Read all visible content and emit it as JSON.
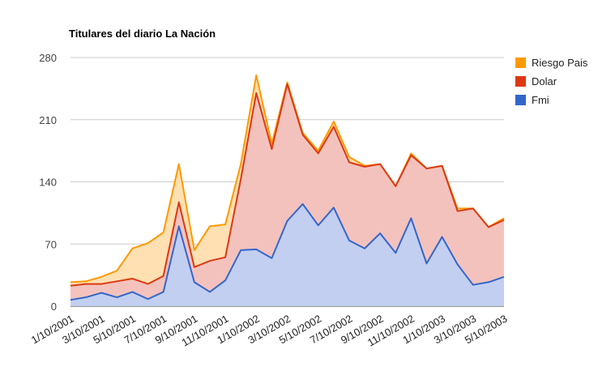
{
  "chart_data": {
    "type": "area",
    "title": "Titulares del diario La Nación",
    "xlabel": "",
    "ylabel": "",
    "ylim": [
      0,
      280
    ],
    "yticks": [
      0,
      70,
      140,
      210,
      280
    ],
    "grid": true,
    "stacked": false,
    "legend_position": "right",
    "x": [
      "1/10/2001",
      "2/10/2001",
      "3/10/2001",
      "4/10/2001",
      "5/10/2001",
      "6/10/2001",
      "7/10/2001",
      "8/10/2001",
      "9/10/2001",
      "10/10/2001",
      "11/10/2001",
      "12/10/2001",
      "1/10/2002",
      "2/10/2002",
      "3/10/2002",
      "4/10/2002",
      "5/10/2002",
      "6/10/2002",
      "7/10/2002",
      "8/10/2002",
      "9/10/2002",
      "10/10/2002",
      "11/10/2002",
      "12/10/2002",
      "1/10/2003",
      "2/10/2003",
      "3/10/2003",
      "4/10/2003",
      "5/10/2003"
    ],
    "xtick_labels": [
      "1/10/2001",
      "3/10/2001",
      "5/10/2001",
      "7/10/2001",
      "9/10/2001",
      "11/10/2001",
      "1/10/2002",
      "3/10/2002",
      "5/10/2002",
      "7/10/2002",
      "9/10/2002",
      "11/10/2002",
      "1/10/2003",
      "3/10/2003",
      "5/10/2003"
    ],
    "series": [
      {
        "name": "Riesgo Pais",
        "color": "#ff9900",
        "fill": "#ffe0b3",
        "values": [
          27,
          28,
          33,
          40,
          65,
          71,
          83,
          160,
          63,
          90,
          92,
          160,
          260,
          183,
          252,
          195,
          175,
          208,
          168,
          158,
          160,
          135,
          172,
          155,
          158,
          110,
          110,
          89,
          99
        ]
      },
      {
        "name": "Dolar",
        "color": "#dc3912",
        "fill": "#f4c2bd",
        "values": [
          23,
          25,
          25,
          28,
          31,
          25,
          34,
          117,
          44,
          51,
          55,
          143,
          240,
          177,
          250,
          193,
          172,
          202,
          162,
          157,
          160,
          135,
          170,
          155,
          158,
          107,
          110,
          89,
          97
        ]
      },
      {
        "name": "Fmi",
        "color": "#3366cc",
        "fill": "#c3cff0",
        "values": [
          7,
          10,
          15,
          10,
          16,
          8,
          16,
          90,
          27,
          16,
          29,
          63,
          64,
          54,
          96,
          115,
          91,
          111,
          74,
          65,
          82,
          60,
          99,
          48,
          78,
          47,
          24,
          27,
          33
        ]
      }
    ]
  }
}
